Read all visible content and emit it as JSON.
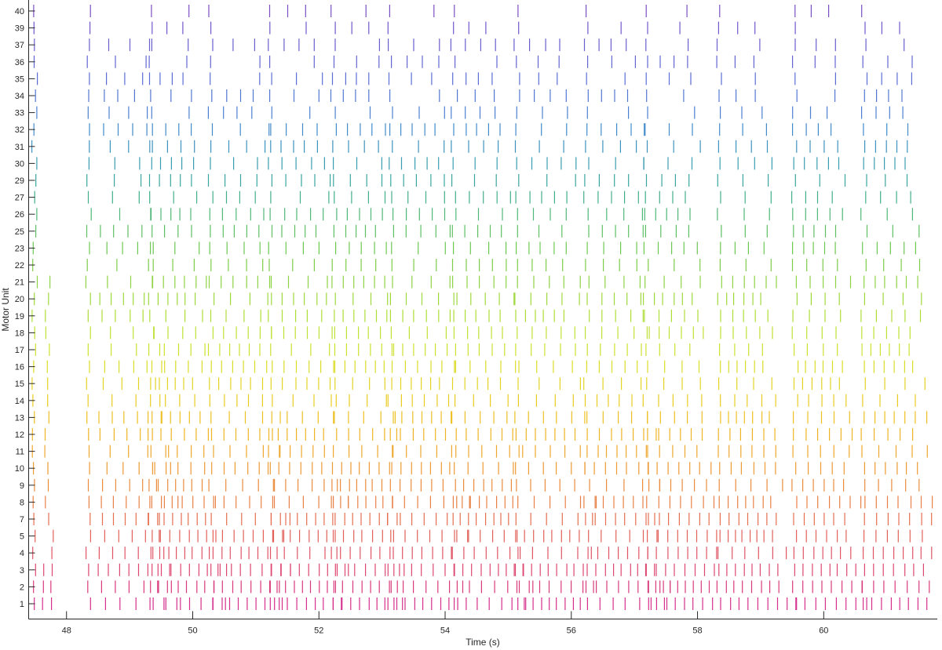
{
  "chart_data": {
    "type": "raster",
    "xlabel": "Time (s)",
    "ylabel": "Motor Unit",
    "xlim": [
      47.4,
      61.8
    ],
    "x_ticks": [
      48,
      50,
      52,
      54,
      56,
      58,
      60
    ],
    "grid": false,
    "legend": "none",
    "color_scale": "units colored from magenta (unit 1) through orange, yellow, green and blue to violet (unit 40)",
    "units": [
      "1",
      "2",
      "3",
      "4",
      "5",
      "7",
      "8",
      "9",
      "10",
      "11",
      "12",
      "13",
      "14",
      "15",
      "16",
      "17",
      "18",
      "19",
      "20",
      "21",
      "22",
      "23",
      "25",
      "26",
      "27",
      "29",
      "30",
      "31",
      "32",
      "33",
      "34",
      "35",
      "36",
      "37",
      "39",
      "40"
    ],
    "colors": [
      "#d62f8c",
      "#d93a7c",
      "#dc4670",
      "#df5566",
      "#e2625a",
      "#e56f4f",
      "#e88045",
      "#eb8c3c",
      "#ec9a33",
      "#eda72c",
      "#eeb425",
      "#edc021",
      "#e9cb20",
      "#e3d424",
      "#dbdc27",
      "#cde02e",
      "#bfe133",
      "#afdd38",
      "#9fd83d",
      "#8dd242",
      "#7dcc4a",
      "#6cc752",
      "#5dbf62",
      "#4fb777",
      "#42ae8c",
      "#3aa59f",
      "#3a9cb0",
      "#3e92bf",
      "#448ac9",
      "#4b80d0",
      "#5277d3",
      "#5a6ed4",
      "#6266d2",
      "#6a5ecf",
      "#7256ca",
      "#7b4ec3"
    ],
    "bursts": [
      {
        "onset": 47.45,
        "duration": 0.3
      },
      {
        "onset": 48.3,
        "duration": 1.5
      },
      {
        "onset": 49.3,
        "duration": 1.15
      },
      {
        "onset": 50.25,
        "duration": 1.25
      },
      {
        "onset": 51.2,
        "duration": 1.3
      },
      {
        "onset": 52.2,
        "duration": 1.15
      },
      {
        "onset": 53.1,
        "duration": 1.3
      },
      {
        "onset": 54.1,
        "duration": 1.25
      },
      {
        "onset": 55.1,
        "duration": 1.3
      },
      {
        "onset": 56.2,
        "duration": 1.3
      },
      {
        "onset": 57.15,
        "duration": 1.2
      },
      {
        "onset": 58.3,
        "duration": 1.15
      },
      {
        "onset": 59.5,
        "duration": 1.1
      },
      {
        "onset": 60.6,
        "duration": 1.2
      }
    ],
    "spikes_per_burst": [
      8,
      8,
      8,
      7,
      7,
      7,
      7,
      6,
      6,
      6,
      6,
      6,
      5,
      5,
      5,
      5,
      5,
      5,
      5,
      5,
      4,
      4,
      4,
      4,
      4,
      4,
      4,
      4,
      4,
      3,
      3,
      3,
      3,
      3,
      2,
      2
    ]
  }
}
